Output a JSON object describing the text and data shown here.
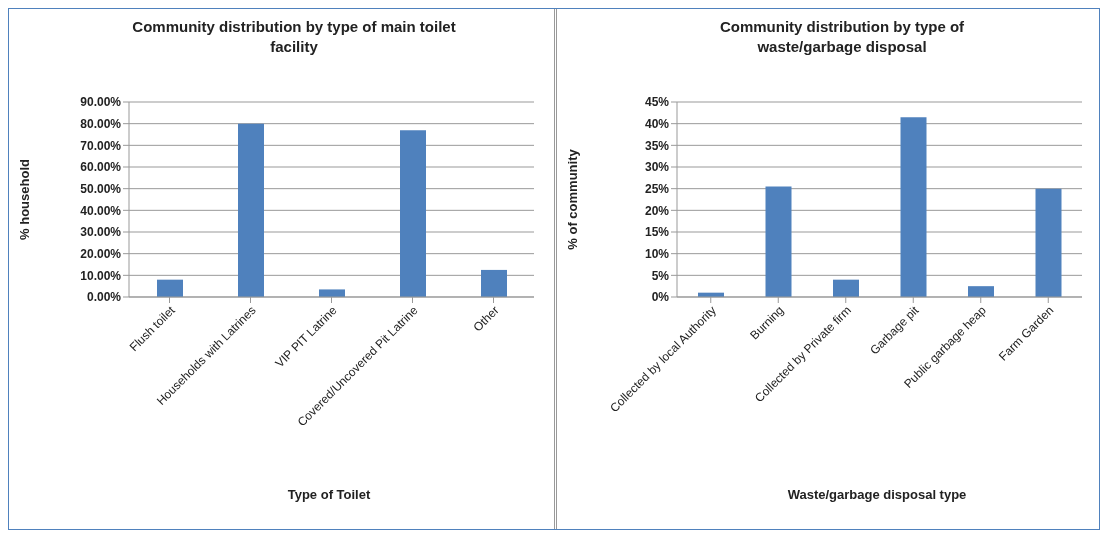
{
  "chart_data": [
    {
      "type": "bar",
      "title": "Community distribution by type of main toilet facility",
      "xlabel": "Type of Toilet",
      "ylabel": "% household",
      "categories": [
        "Flush toilet",
        "Households with Latrines",
        "VIP PIT Latrine",
        "Covered/Uncovered Pit Latrine",
        "Other"
      ],
      "values": [
        8,
        80,
        3.5,
        77,
        12.5
      ],
      "color": "#4f81bd",
      "ylim": [
        0,
        90
      ],
      "yticks": [
        {
          "value": 0,
          "label": "0.00%"
        },
        {
          "value": 10,
          "label": "10.00%"
        },
        {
          "value": 20,
          "label": "20.00%"
        },
        {
          "value": 30,
          "label": "30.00%"
        },
        {
          "value": 40,
          "label": "40.00%"
        },
        {
          "value": 50,
          "label": "50.00%"
        },
        {
          "value": 60,
          "label": "60.00%"
        },
        {
          "value": 70,
          "label": "70.00%"
        },
        {
          "value": 80,
          "label": "80.00%"
        },
        {
          "value": 90,
          "label": "90.00%"
        }
      ],
      "grid": "y"
    },
    {
      "type": "bar",
      "title": "Community distribution by type of waste/garbage disposal",
      "xlabel": "Waste/garbage disposal type",
      "ylabel": "% of community",
      "categories": [
        "Collected by local Authority",
        "Burning",
        "Collected by Private firm",
        "Garbage pit",
        "Public garbage heap",
        "Farm Garden"
      ],
      "values": [
        1,
        25.5,
        4,
        41.5,
        2.5,
        25
      ],
      "color": "#4f81bd",
      "ylim": [
        0,
        45
      ],
      "yticks": [
        {
          "value": 0,
          "label": "0%"
        },
        {
          "value": 5,
          "label": "5%"
        },
        {
          "value": 10,
          "label": "10%"
        },
        {
          "value": 15,
          "label": "15%"
        },
        {
          "value": 20,
          "label": "20%"
        },
        {
          "value": 25,
          "label": "25%"
        },
        {
          "value": 30,
          "label": "30%"
        },
        {
          "value": 35,
          "label": "35%"
        },
        {
          "value": 40,
          "label": "40%"
        },
        {
          "value": 45,
          "label": "45%"
        }
      ],
      "grid": "y"
    }
  ]
}
